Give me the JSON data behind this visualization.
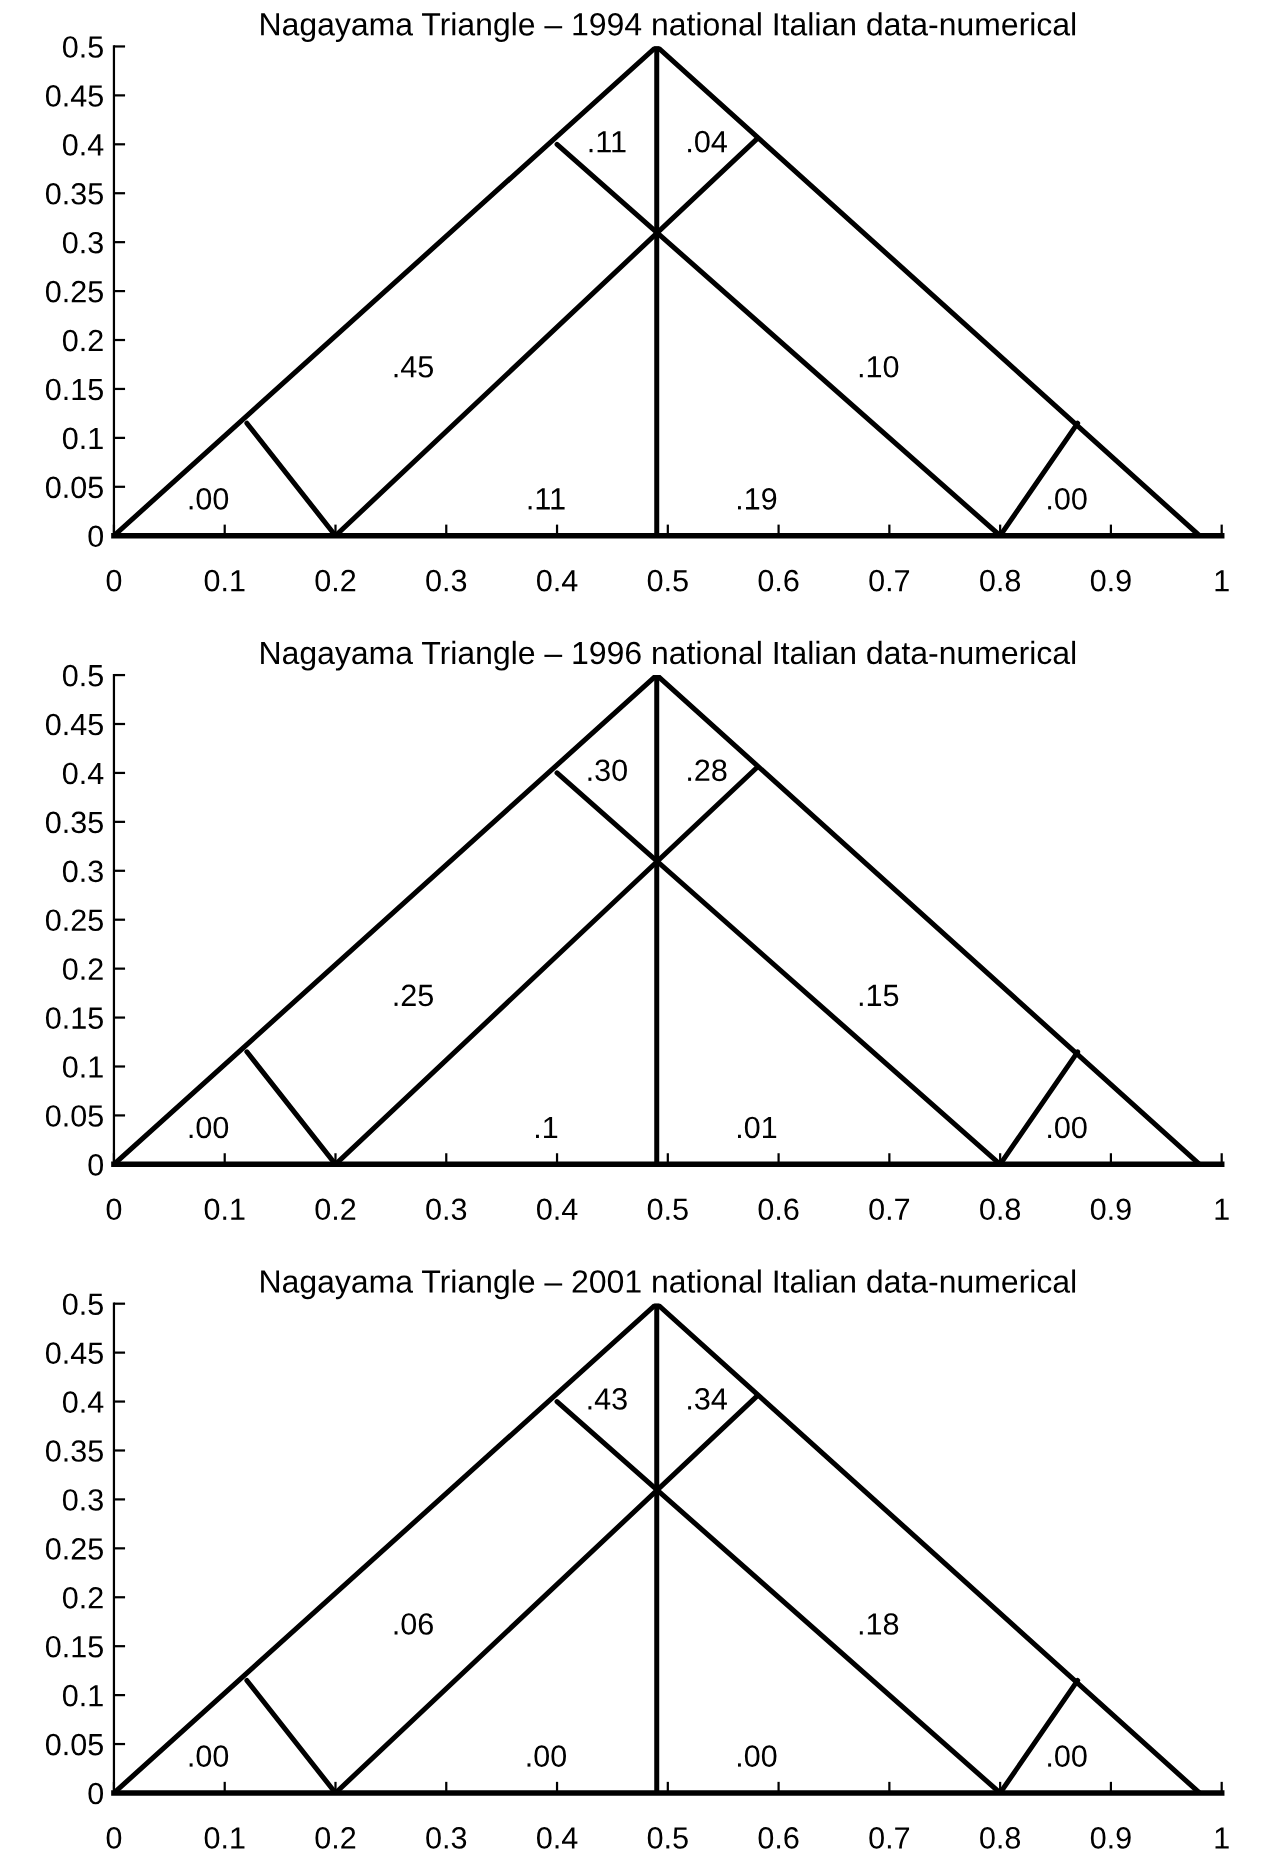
{
  "chart_data": [
    {
      "type": "line",
      "title": "Nagayama Triangle – 1994 national Italian data-numerical",
      "xlim": [
        0,
        1
      ],
      "ylim": [
        0,
        0.5
      ],
      "xticks": [
        0,
        0.1,
        0.2,
        0.3,
        0.4,
        0.5,
        0.6,
        0.7,
        0.8,
        0.9,
        1
      ],
      "yticks": [
        0,
        0.05,
        0.1,
        0.15,
        0.2,
        0.25,
        0.3,
        0.35,
        0.4,
        0.45,
        0.5
      ],
      "grid": false,
      "legend": false,
      "marker": "none",
      "line_style": "solid",
      "series": [
        {
          "color": "#000000",
          "x": [
            0,
            0.49
          ],
          "values": [
            0,
            0.5
          ]
        },
        {
          "color": "#000000",
          "x": [
            0.49,
            0.98
          ],
          "values": [
            0.5,
            0
          ]
        },
        {
          "color": "#000000",
          "x": [
            0.2,
            0.58
          ],
          "values": [
            0,
            0.405
          ]
        },
        {
          "color": "#000000",
          "x": [
            0.4,
            0.8
          ],
          "values": [
            0.4,
            0
          ]
        },
        {
          "color": "#000000",
          "x": [
            0.12,
            0.2
          ],
          "values": [
            0.115,
            0
          ]
        },
        {
          "color": "#000000",
          "x": [
            0.8,
            0.87
          ],
          "values": [
            0,
            0.115
          ]
        }
      ],
      "ref_lines": [
        {
          "axis": "x",
          "value": 0.49,
          "color": "#000000",
          "line_style": "solid"
        }
      ],
      "annotations": [
        ".00",
        ".45",
        ".11",
        ".19",
        ".10",
        ".00",
        ".11",
        ".04"
      ]
    },
    {
      "type": "line",
      "title": "Nagayama Triangle – 1996 national Italian data-numerical",
      "xlim": [
        0,
        1
      ],
      "ylim": [
        0,
        0.5
      ],
      "xticks": [
        0,
        0.1,
        0.2,
        0.3,
        0.4,
        0.5,
        0.6,
        0.7,
        0.8,
        0.9,
        1
      ],
      "yticks": [
        0,
        0.05,
        0.1,
        0.15,
        0.2,
        0.25,
        0.3,
        0.35,
        0.4,
        0.45,
        0.5
      ],
      "grid": false,
      "legend": false,
      "marker": "none",
      "line_style": "solid",
      "series": [
        {
          "color": "#000000",
          "x": [
            0,
            0.49
          ],
          "values": [
            0,
            0.5
          ]
        },
        {
          "color": "#000000",
          "x": [
            0.49,
            0.98
          ],
          "values": [
            0.5,
            0
          ]
        },
        {
          "color": "#000000",
          "x": [
            0.2,
            0.58
          ],
          "values": [
            0,
            0.405
          ]
        },
        {
          "color": "#000000",
          "x": [
            0.4,
            0.8
          ],
          "values": [
            0.4,
            0
          ]
        },
        {
          "color": "#000000",
          "x": [
            0.12,
            0.2
          ],
          "values": [
            0.115,
            0
          ]
        },
        {
          "color": "#000000",
          "x": [
            0.8,
            0.87
          ],
          "values": [
            0,
            0.115
          ]
        }
      ],
      "ref_lines": [
        {
          "axis": "x",
          "value": 0.49,
          "color": "#000000",
          "line_style": "solid"
        }
      ],
      "annotations": [
        ".00",
        ".25",
        ".1",
        ".01",
        ".15",
        ".00",
        ".30",
        ".28"
      ]
    },
    {
      "type": "line",
      "title": "Nagayama Triangle – 2001 national Italian data-numerical",
      "xlim": [
        0,
        1
      ],
      "ylim": [
        0,
        0.5
      ],
      "xticks": [
        0,
        0.1,
        0.2,
        0.3,
        0.4,
        0.5,
        0.6,
        0.7,
        0.8,
        0.9,
        1
      ],
      "yticks": [
        0,
        0.05,
        0.1,
        0.15,
        0.2,
        0.25,
        0.3,
        0.35,
        0.4,
        0.45,
        0.5
      ],
      "grid": false,
      "legend": false,
      "marker": "none",
      "line_style": "solid",
      "series": [
        {
          "color": "#000000",
          "x": [
            0,
            0.49
          ],
          "values": [
            0,
            0.5
          ]
        },
        {
          "color": "#000000",
          "x": [
            0.49,
            0.98
          ],
          "values": [
            0.5,
            0
          ]
        },
        {
          "color": "#000000",
          "x": [
            0.2,
            0.58
          ],
          "values": [
            0,
            0.405
          ]
        },
        {
          "color": "#000000",
          "x": [
            0.4,
            0.8
          ],
          "values": [
            0.4,
            0
          ]
        },
        {
          "color": "#000000",
          "x": [
            0.12,
            0.2
          ],
          "values": [
            0.115,
            0
          ]
        },
        {
          "color": "#000000",
          "x": [
            0.8,
            0.87
          ],
          "values": [
            0,
            0.115
          ]
        }
      ],
      "ref_lines": [
        {
          "axis": "x",
          "value": 0.49,
          "color": "#000000",
          "line_style": "solid"
        }
      ],
      "annotations": [
        ".00",
        ".06",
        ".00",
        ".00",
        ".18",
        ".00",
        ".43",
        ".34"
      ]
    }
  ]
}
